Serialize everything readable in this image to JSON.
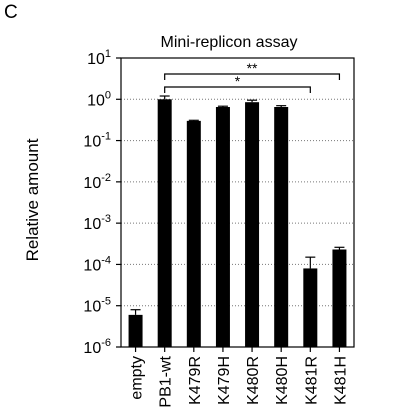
{
  "panel_label": "C",
  "chart_data": {
    "type": "bar",
    "title": "Mini-replicon assay",
    "xlabel": "",
    "ylabel": "Relative amount",
    "yscale": "log",
    "ylim": [
      1e-06,
      10
    ],
    "ytick_exponents": [
      -6,
      -5,
      -4,
      -3,
      -2,
      -1,
      0,
      1
    ],
    "ytick_base": "10",
    "grid": "dotted horizontal at each decade below 10^1",
    "categories": [
      "empty",
      "PB1-wt",
      "K479R",
      "K479H",
      "K480R",
      "K480H",
      "K481R",
      "K481H"
    ],
    "values": [
      6e-06,
      1.0,
      0.3,
      0.65,
      0.85,
      0.65,
      8e-05,
      0.00023
    ],
    "error_upper": [
      8e-06,
      1.2,
      0.31,
      0.68,
      0.95,
      0.7,
      0.00015,
      0.00026
    ],
    "bar_color": "#000000",
    "significance": [
      {
        "from": "PB1-wt",
        "to": "K481H",
        "label": "**"
      },
      {
        "from": "PB1-wt",
        "to": "K481R",
        "label": "*"
      }
    ]
  }
}
